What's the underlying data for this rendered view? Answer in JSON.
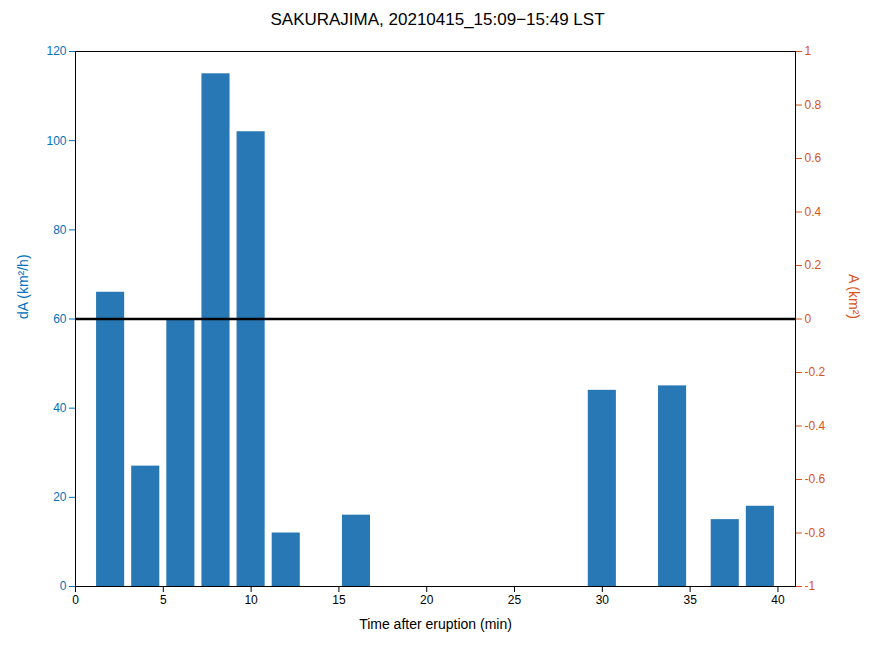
{
  "chart_data": {
    "type": "bar",
    "title": "SAKURAJIMA, 20210415_15:09−15:49 LST",
    "xlabel": "Time after eruption (min)",
    "ylabel": "dA (km²/h)",
    "y2label": "A (km²)",
    "x": [
      2,
      4,
      6,
      8,
      10,
      12,
      16,
      30,
      34,
      37,
      39
    ],
    "values": [
      66,
      27,
      60,
      115,
      102,
      12,
      16,
      44,
      45,
      15,
      18
    ],
    "color": "#2878b5",
    "hline": {
      "y": 60,
      "color": "black"
    },
    "xlim": [
      0,
      41
    ],
    "xticks": [
      0,
      5,
      10,
      15,
      20,
      25,
      30,
      35,
      40
    ],
    "ylim": [
      0,
      120
    ],
    "yticks": [
      0,
      20,
      40,
      60,
      80,
      100,
      120
    ],
    "y2lim": [
      -1,
      1
    ],
    "y2ticks": [
      -1,
      -0.8,
      -0.6,
      -0.4,
      -0.2,
      0,
      0.2,
      0.4,
      0.6,
      0.8,
      1
    ],
    "axis_colors": {
      "y": "#0072bd",
      "y2": "#d95319"
    },
    "grid": false
  }
}
